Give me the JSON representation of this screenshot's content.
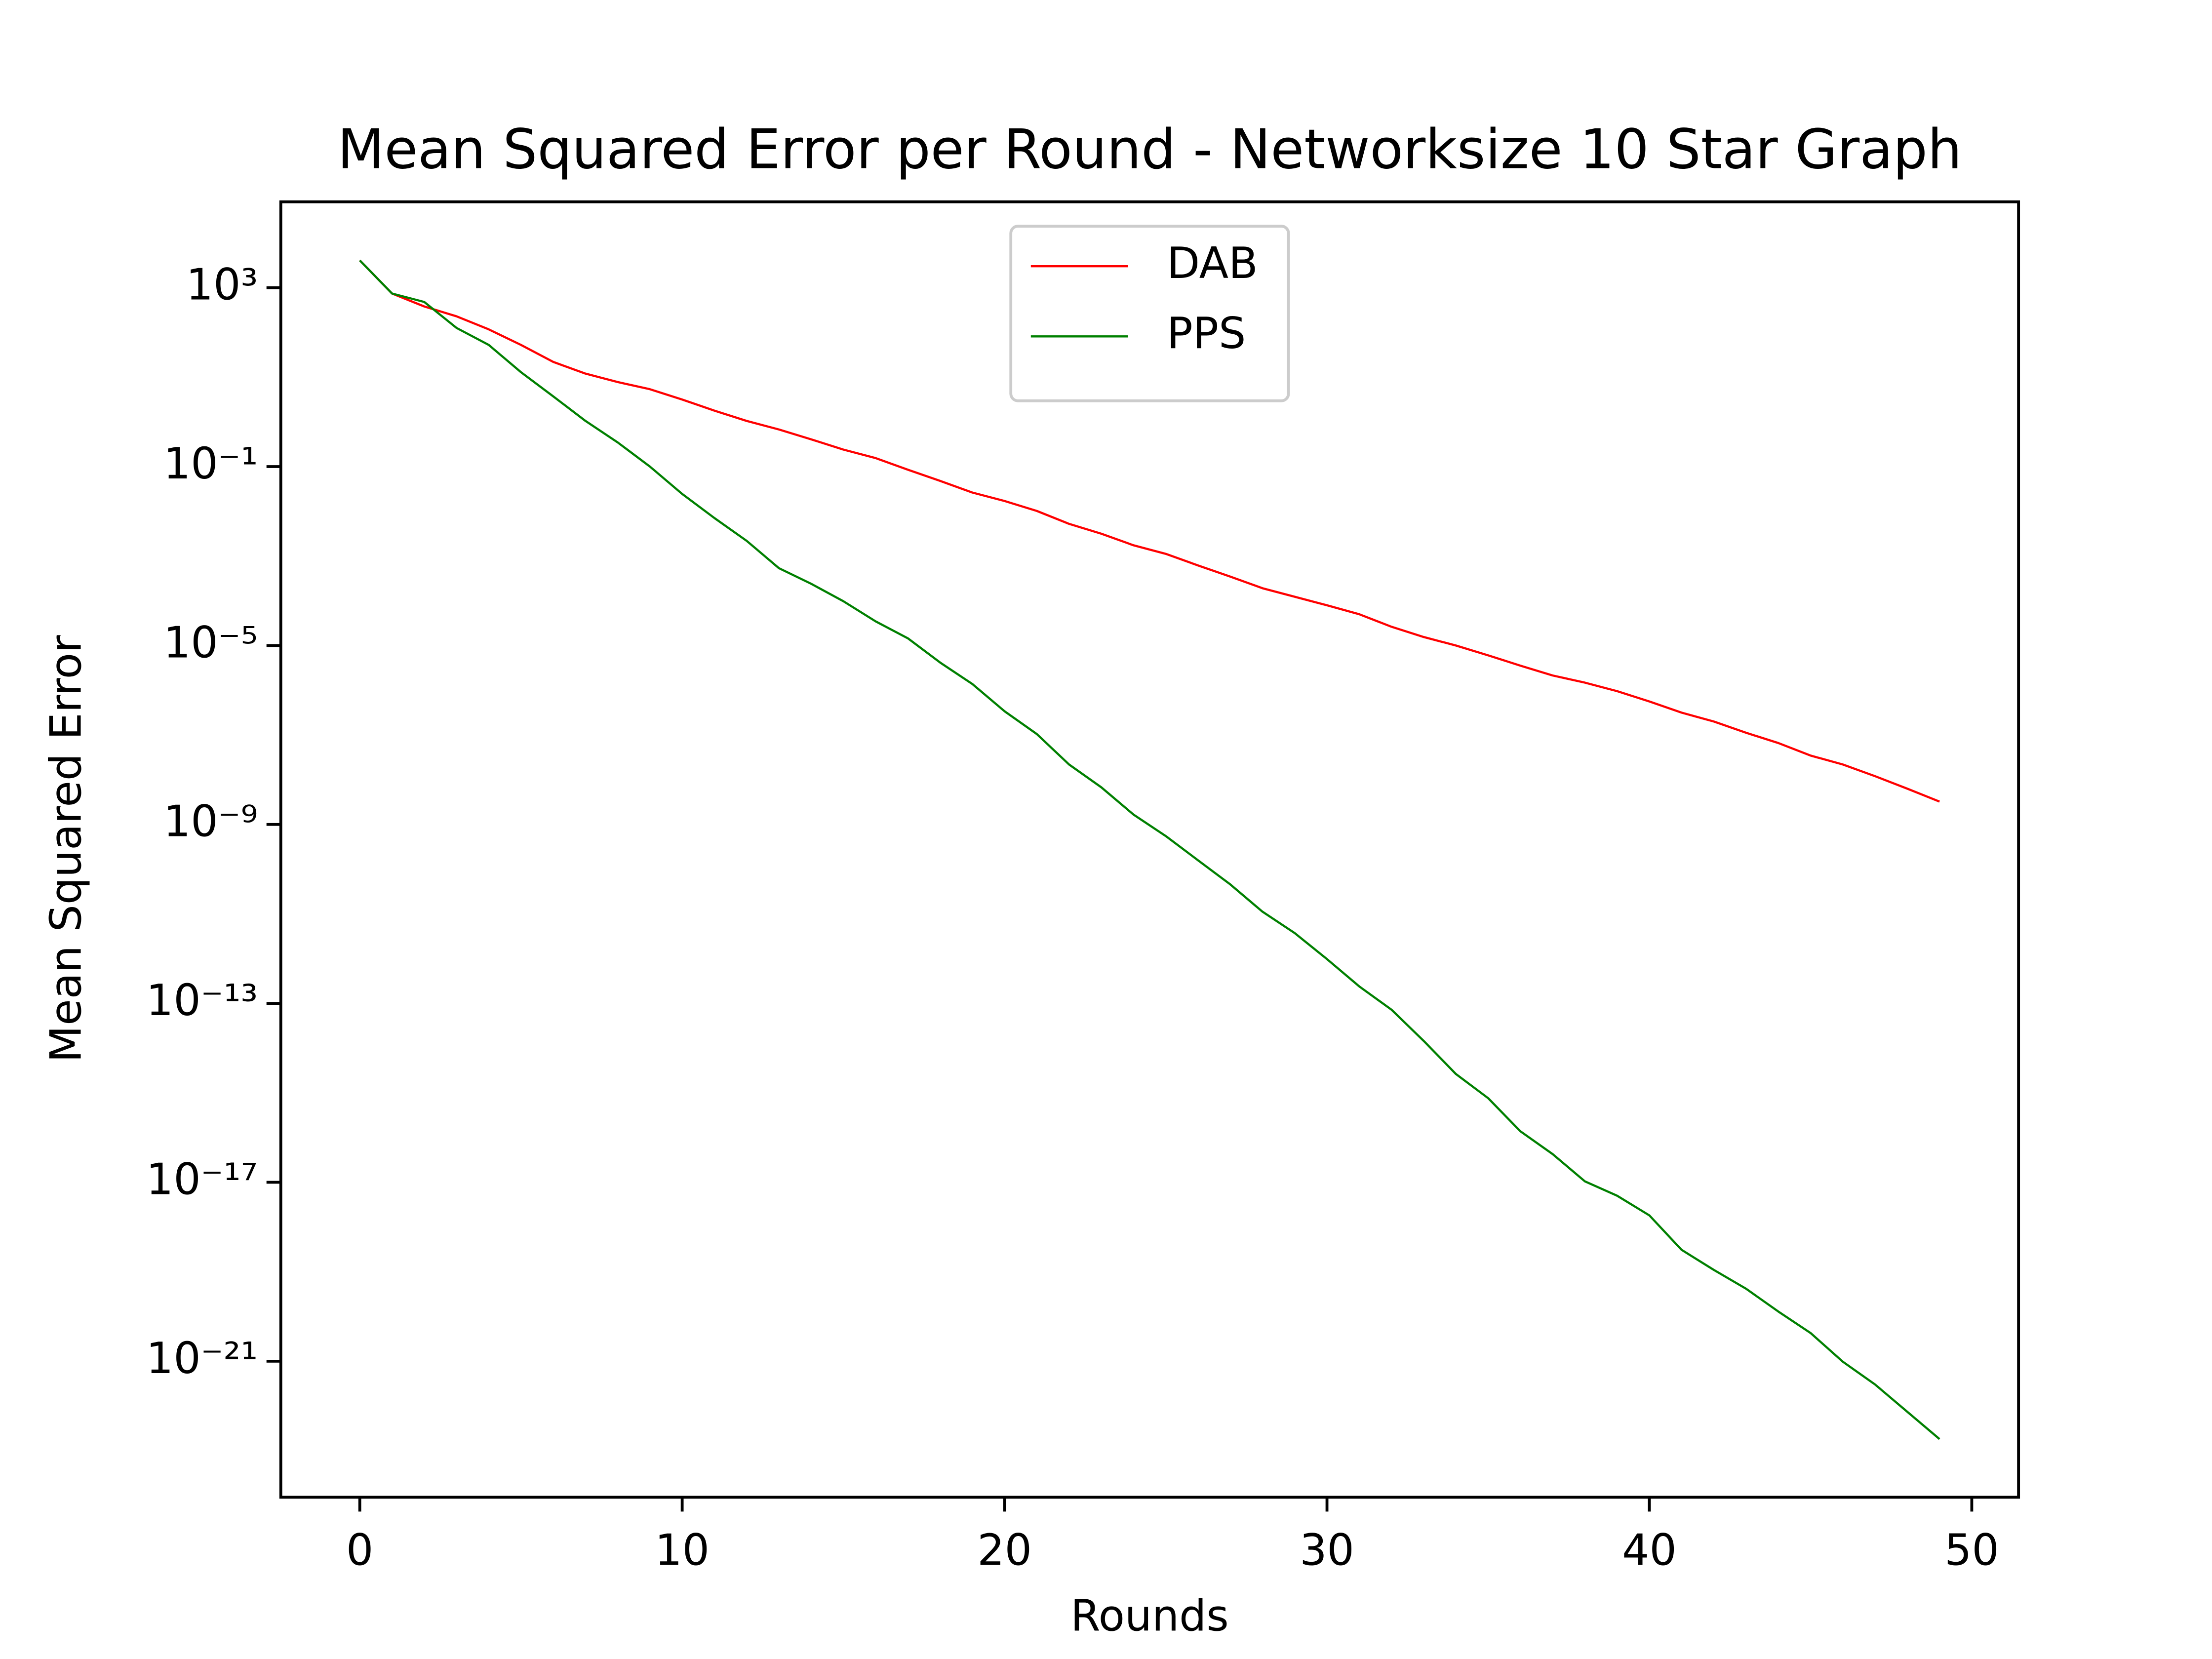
{
  "chart_data": {
    "type": "line",
    "title": "Mean Squared Error per Round - Networksize 10 Star Graph",
    "x_label": "Rounds",
    "y_label": "Mean Squared Error",
    "x": [
      0,
      1,
      2,
      3,
      4,
      5,
      6,
      7,
      8,
      9,
      10,
      11,
      12,
      13,
      14,
      15,
      16,
      17,
      18,
      19,
      20,
      21,
      22,
      23,
      24,
      25,
      26,
      27,
      28,
      29,
      30,
      31,
      32,
      33,
      34,
      35,
      36,
      37,
      38,
      39,
      40,
      41,
      42,
      43,
      44,
      45,
      46,
      47,
      48,
      49
    ],
    "series": [
      {
        "name": "DAB",
        "color": "#ff0000",
        "values": [
          4070.0,
          741.0,
          380.0,
          229.0,
          117.0,
          52.5,
          21.9,
          12.0,
          7.76,
          5.37,
          3.16,
          1.78,
          1.05,
          0.676,
          0.407,
          0.24,
          0.155,
          0.0851,
          0.0479,
          0.0263,
          0.017,
          0.0102,
          0.00525,
          0.00316,
          0.00174,
          0.00112,
          0.000617,
          0.000347,
          0.000191,
          0.000123,
          7.94e-05,
          5.01e-05,
          2.63e-05,
          1.55e-05,
          1e-05,
          6.03e-06,
          3.55e-06,
          2.14e-06,
          1.48e-06,
          9.55e-07,
          5.62e-07,
          3.16e-07,
          2e-07,
          1.12e-07,
          6.61e-08,
          3.47e-08,
          2.19e-08,
          1.2e-08,
          6.31e-09,
          3.24e-09
        ]
      },
      {
        "name": "PPS",
        "color": "#008000",
        "values": [
          4070.0,
          741.0,
          479.0,
          126.0,
          52.5,
          12.9,
          3.72,
          1.05,
          0.347,
          0.1,
          0.0245,
          0.00708,
          0.00219,
          0.000537,
          0.00024,
          9.77e-05,
          3.47e-05,
          1.45e-05,
          4.17e-06,
          1.38e-06,
          3.39e-07,
          1.05e-07,
          2.19e-08,
          6.76e-09,
          1.66e-09,
          5.5e-10,
          1.58e-10,
          4.57e-11,
          1.12e-11,
          3.72e-12,
          9.77e-13,
          2.4e-13,
          7.24e-14,
          1.45e-14,
          2.63e-15,
          7.59e-16,
          1.38e-16,
          4.27e-17,
          1.05e-17,
          5.01e-18,
          1.82e-18,
          3.09e-19,
          1.1e-19,
          4.17e-20,
          1.29e-20,
          4.27e-21,
          9.77e-22,
          3.02e-22,
          7.41e-23,
          1.82e-23
        ]
      }
    ],
    "xlim": [
      -2.45,
      51.45
    ],
    "xticks": [
      0,
      10,
      20,
      30,
      40,
      50
    ],
    "ylim": [
      9.1e-25,
      83000.0
    ],
    "yscale": "log",
    "yticks": [
      {
        "value": 1000.0,
        "label": "10³"
      },
      {
        "value": 0.1,
        "label": "10⁻¹"
      },
      {
        "value": 1e-05,
        "label": "10⁻⁵"
      },
      {
        "value": 1e-09,
        "label": "10⁻⁹"
      },
      {
        "value": 1e-13,
        "label": "10⁻¹³"
      },
      {
        "value": 1e-17,
        "label": "10⁻¹⁷"
      },
      {
        "value": 1e-21,
        "label": "10⁻²¹"
      }
    ],
    "legend": "upper center"
  }
}
